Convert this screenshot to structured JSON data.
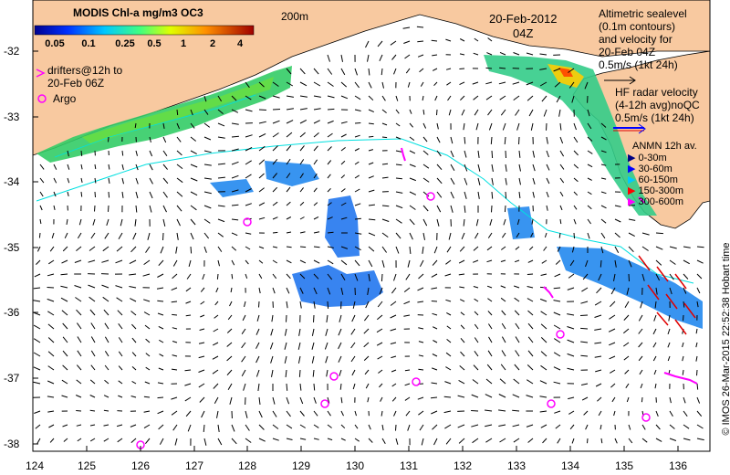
{
  "title": "MODIS Chl-a mg/m3 OC3",
  "colorbar": {
    "ticks": [
      "0.05",
      "0.1",
      "0.25",
      "0.5",
      "1",
      "2",
      "4"
    ]
  },
  "date": "20-Feb-2012",
  "time": "04Z",
  "isobath_label": "200m",
  "drifters_label": "drifters@12h to\n20-Feb 06Z",
  "argo_label": "Argo",
  "altimetry_label": "Altimetric sealevel\n(0.1m contours)\nand velocity for\n20-Feb 04Z\n0.5m/s (1kt 24h)",
  "hf_radar_label": "HF radar velocity\n(4-12h avg)noQC\n0.5m/s (1kt 24h)",
  "anmn": {
    "title": "ANMN 12h av.",
    "rows": [
      {
        "label": "0-30m",
        "color": "#000080"
      },
      {
        "label": "30-60m",
        "color": "#0000ff"
      },
      {
        "label": "60-150m",
        "color": "#00c8ff"
      },
      {
        "label": "150-300m",
        "color": "#ff0000"
      },
      {
        "label": "300-600m",
        "color": "#ff00ff"
      }
    ]
  },
  "copyright": "© IMOS 26-Mar-2015 22:52:38 Hobart time",
  "y_ticks": [
    "-32",
    "-33",
    "-34",
    "-35",
    "-36",
    "-37",
    "-38"
  ],
  "x_ticks": [
    "124",
    "125",
    "126",
    "127",
    "128",
    "129",
    "130",
    "131",
    "132",
    "133",
    "134",
    "135",
    "136"
  ],
  "colors": {
    "land": "#f8c9a0",
    "sea": "#ffffff",
    "vector": "#000000",
    "argo": "#ff00ff",
    "drifter": "#ff00ff",
    "hf_radar": "#e00000",
    "contour": "#00e0e0"
  }
}
